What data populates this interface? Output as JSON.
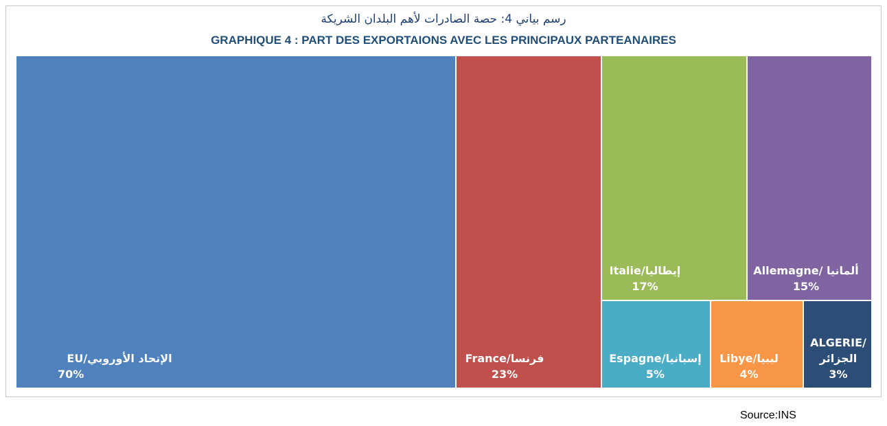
{
  "titles": {
    "arabic": "رسم بياني 4: حصة الصادرات لأهم البلدان  الشريكة",
    "french": "GRAPHIQUE 4 : PART DES EXPORTAIONS AVEC LES PRINCIPAUX PARTEANAIRES"
  },
  "source": "Source:INS",
  "chart_data": {
    "type": "treemap",
    "values_unit": "%",
    "tiles": [
      {
        "name": "EU/الإتحاد الأوروبي",
        "value": 70,
        "value_label": "70%",
        "color": "#4f81bd"
      },
      {
        "name": "France/فرنسا",
        "value": 23,
        "value_label": "23%",
        "color": "#c0504d"
      },
      {
        "name": "Italie/إيطاليا",
        "value": 17,
        "value_label": "17%",
        "color": "#9bbb59"
      },
      {
        "name": "Allemagne/ ألمانيا",
        "value": 15,
        "value_label": "15%",
        "color": "#8064a2"
      },
      {
        "name": "Espagne/إسبانيا",
        "value": 5,
        "value_label": "5%",
        "color": "#4bacc6"
      },
      {
        "name": "Libye/ليبيا",
        "value": 4,
        "value_label": "4%",
        "color": "#f79646"
      },
      {
        "name": "ALGERIE/ الجزائر",
        "value": 3,
        "value_label": "3%",
        "color": "#2c4d75"
      }
    ]
  }
}
